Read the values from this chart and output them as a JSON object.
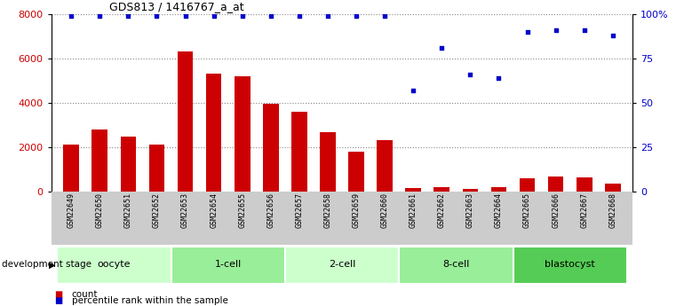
{
  "title": "GDS813 / 1416767_a_at",
  "samples": [
    "GSM22649",
    "GSM22650",
    "GSM22651",
    "GSM22652",
    "GSM22653",
    "GSM22654",
    "GSM22655",
    "GSM22656",
    "GSM22657",
    "GSM22658",
    "GSM22659",
    "GSM22660",
    "GSM22661",
    "GSM22662",
    "GSM22663",
    "GSM22664",
    "GSM22665",
    "GSM22666",
    "GSM22667",
    "GSM22668"
  ],
  "counts": [
    2100,
    2800,
    2450,
    2100,
    6300,
    5300,
    5200,
    3950,
    3600,
    2650,
    1800,
    2300,
    130,
    200,
    100,
    180,
    600,
    650,
    620,
    350
  ],
  "percentiles": [
    99,
    99,
    99,
    99,
    99,
    99,
    99,
    99,
    99,
    99,
    99,
    99,
    57,
    81,
    66,
    64,
    90,
    91,
    91,
    88
  ],
  "groups": [
    {
      "name": "oocyte",
      "start": 0,
      "end": 3,
      "color": "#ccffcc"
    },
    {
      "name": "1-cell",
      "start": 4,
      "end": 7,
      "color": "#99ee99"
    },
    {
      "name": "2-cell",
      "start": 8,
      "end": 11,
      "color": "#ccffcc"
    },
    {
      "name": "8-cell",
      "start": 12,
      "end": 15,
      "color": "#99ee99"
    },
    {
      "name": "blastocyst",
      "start": 16,
      "end": 19,
      "color": "#55cc55"
    }
  ],
  "bar_color": "#cc0000",
  "dot_color": "#0000cc",
  "left_ylim": [
    0,
    8000
  ],
  "right_ylim": [
    0,
    100
  ],
  "left_yticks": [
    0,
    2000,
    4000,
    6000,
    8000
  ],
  "right_yticks": [
    0,
    25,
    50,
    75,
    100
  ],
  "right_yticklabels": [
    "0",
    "25",
    "50",
    "75",
    "100%"
  ],
  "tick_label_color_left": "#cc0000",
  "tick_label_color_right": "#0000cc",
  "xlabel_group": "development stage",
  "legend_count": "count",
  "legend_pct": "percentile rank within the sample",
  "grid_color": "#888888",
  "bg_xtick": "#cccccc"
}
